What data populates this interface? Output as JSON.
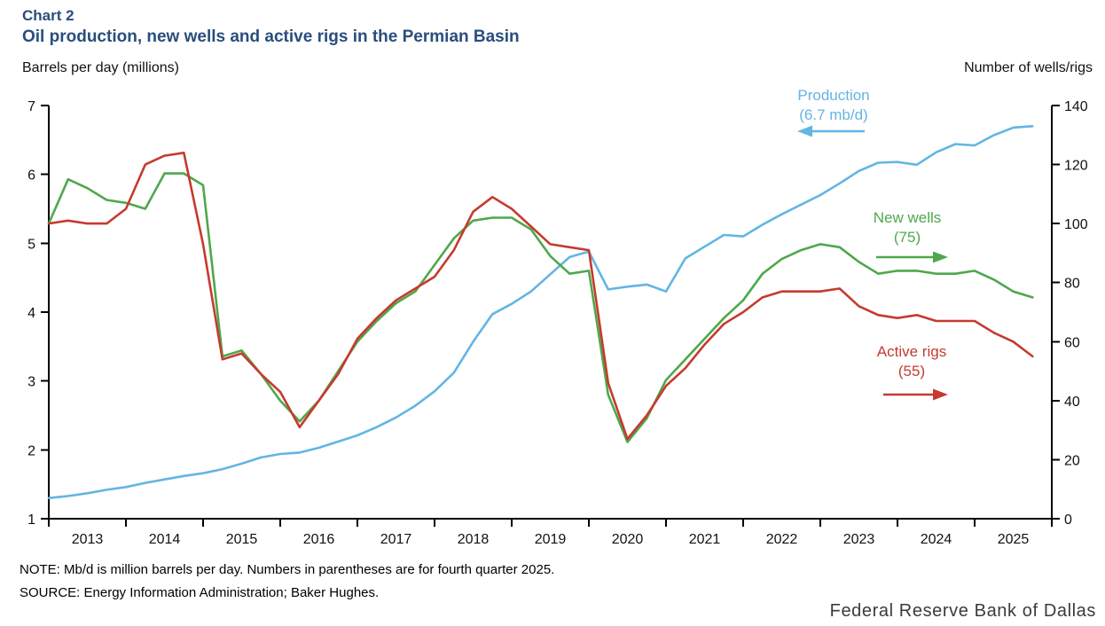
{
  "header": {
    "kicker": "Chart 2",
    "title": "Oil production, new wells and active rigs in the Permian Basin"
  },
  "axes": {
    "left_title": "Barrels per day (millions)",
    "right_title": "Number of wells/rigs",
    "left_ticks": [
      7,
      6,
      5,
      4,
      3,
      2,
      1
    ],
    "right_ticks": [
      140,
      120,
      100,
      80,
      60,
      40,
      20,
      0
    ],
    "years": [
      "2013",
      "2014",
      "2015",
      "2016",
      "2017",
      "2018",
      "2019",
      "2020",
      "2021",
      "2022",
      "2023",
      "2024",
      "2025"
    ]
  },
  "annotations": {
    "production": {
      "label": "Production",
      "value": "(6.7 mb/d)",
      "color": "#63b5e3",
      "arrow_direction": "left"
    },
    "new_wells": {
      "label": "New wells",
      "value": "(75)",
      "color": "#4fa74c",
      "arrow_direction": "right"
    },
    "active_rigs": {
      "label": "Active rigs",
      "value": "(55)",
      "color": "#c63a2f",
      "arrow_direction": "right"
    }
  },
  "notes": {
    "note": "NOTE: Mb/d is million barrels per day. Numbers in parentheses are for fourth quarter 2025.",
    "source": "SOURCE: Energy Information Administration; Baker Hughes.",
    "attribution": "Federal Reserve Bank of Dallas"
  },
  "chart_data": {
    "type": "line",
    "title": "Oil production, new wells and active rigs in the Permian Basin",
    "x_unit": "quarter",
    "x": [
      "2013 Q1",
      "2013 Q2",
      "2013 Q3",
      "2013 Q4",
      "2014 Q1",
      "2014 Q2",
      "2014 Q3",
      "2014 Q4",
      "2015 Q1",
      "2015 Q2",
      "2015 Q3",
      "2015 Q4",
      "2016 Q1",
      "2016 Q2",
      "2016 Q3",
      "2016 Q4",
      "2017 Q1",
      "2017 Q2",
      "2017 Q3",
      "2017 Q4",
      "2018 Q1",
      "2018 Q2",
      "2018 Q3",
      "2018 Q4",
      "2019 Q1",
      "2019 Q2",
      "2019 Q3",
      "2019 Q4",
      "2020 Q1",
      "2020 Q2",
      "2020 Q3",
      "2020 Q4",
      "2021 Q1",
      "2021 Q2",
      "2021 Q3",
      "2021 Q4",
      "2022 Q1",
      "2022 Q2",
      "2022 Q3",
      "2022 Q4",
      "2023 Q1",
      "2023 Q2",
      "2023 Q3",
      "2023 Q4",
      "2024 Q1",
      "2024 Q2",
      "2024 Q3",
      "2024 Q4",
      "2025 Q1",
      "2025 Q2",
      "2025 Q3",
      "2025 Q4"
    ],
    "left_axis": {
      "label": "Barrels per day (millions)",
      "range": [
        1,
        7
      ]
    },
    "right_axis": {
      "label": "Number of wells/rigs",
      "range": [
        0,
        140
      ]
    },
    "series": [
      {
        "name": "Production",
        "axis": "left",
        "unit": "million barrels per day",
        "color": "#63b5e3",
        "latest_label": "Production (6.7 mb/d)",
        "values": [
          1.3,
          1.33,
          1.37,
          1.42,
          1.46,
          1.52,
          1.57,
          1.62,
          1.66,
          1.72,
          1.8,
          1.89,
          1.94,
          1.96,
          2.03,
          2.12,
          2.21,
          2.33,
          2.47,
          2.64,
          2.85,
          3.12,
          3.57,
          3.97,
          4.12,
          4.3,
          4.55,
          4.8,
          4.88,
          4.33,
          4.37,
          4.4,
          4.3,
          4.78,
          4.95,
          5.12,
          5.1,
          5.27,
          5.42,
          5.56,
          5.7,
          5.87,
          6.05,
          6.17,
          6.18,
          6.14,
          6.32,
          6.44,
          6.42,
          6.57,
          6.68,
          6.7
        ]
      },
      {
        "name": "New wells",
        "axis": "right",
        "unit": "wells",
        "color": "#4fa74c",
        "latest_label": "New wells (75)",
        "values": [
          100,
          115,
          112,
          108,
          107,
          105,
          117,
          117,
          113,
          55,
          57,
          49,
          40,
          33,
          40,
          50,
          60,
          67,
          73,
          77,
          86,
          95,
          101,
          102,
          102,
          98,
          89,
          83,
          84,
          42,
          26,
          34,
          47,
          54,
          61,
          68,
          74,
          83,
          88,
          91,
          93,
          92,
          87,
          83,
          84,
          84,
          83,
          83,
          84,
          81,
          77,
          75
        ]
      },
      {
        "name": "Active rigs",
        "axis": "right",
        "unit": "rigs",
        "color": "#c63a2f",
        "latest_label": "Active rigs (55)",
        "values": [
          100,
          101,
          100,
          100,
          105,
          120,
          123,
          124,
          93,
          54,
          56,
          49,
          43,
          31,
          40,
          49,
          61,
          68,
          74,
          78,
          82,
          91,
          104,
          109,
          105,
          99,
          93,
          92,
          91,
          46,
          27,
          35,
          45,
          51,
          59,
          66,
          70,
          75,
          77,
          77,
          77,
          78,
          72,
          69,
          68,
          69,
          67,
          67,
          67,
          63,
          60,
          55
        ]
      }
    ]
  }
}
